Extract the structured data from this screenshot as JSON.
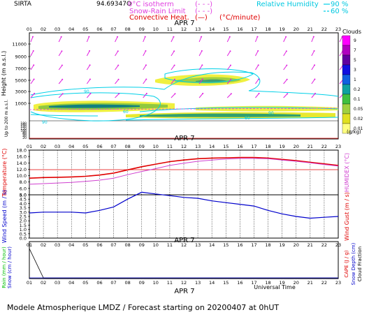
{
  "header": {
    "site": "SIRTA",
    "coords": "94.69347O",
    "isotherm_label": "0°C isotherm",
    "snow_rain_label": "Snow-Rain Limit",
    "convective_label": "Convective Heat.",
    "convective_unit": "(°C/minute)",
    "rh_label": "Relative Humidity",
    "rh_90": "90 %",
    "rh_60": "60 %"
  },
  "hours": [
    "01",
    "02",
    "03",
    "04",
    "05",
    "06",
    "07",
    "08",
    "09",
    "10",
    "11",
    "12",
    "13",
    "14",
    "15",
    "16",
    "17",
    "18",
    "19",
    "20",
    "21",
    "22",
    "23"
  ],
  "date_label": "APR   7",
  "footer": {
    "universal_time": "Universal Time",
    "model_line": "Modele Atmospherique LMDZ / Forecast starting on 20200407 at 0hUT"
  },
  "colors": {
    "temperature": "#e00000",
    "humidex": "#d040d0",
    "wind_speed": "#0000cc",
    "rh": "#00d0e8",
    "wind_arrows": "#e020e0",
    "rain_axis": "#00c000",
    "snow_axis": "#0000cc",
    "cape_axis": "#e00000"
  },
  "chart_data": [
    {
      "type": "heatmap",
      "title": "Clouds",
      "ylabel": "Height (m a.s.l.)",
      "ylabel2": "Up to 200 m a.s.l.",
      "yticks_upper": [
        11000,
        9000,
        7000,
        5000,
        3000,
        1000
      ],
      "yticks_lower": [
        180,
        160,
        140,
        120,
        100,
        80,
        60,
        40,
        20
      ],
      "colorbar": {
        "unit": "(g/kg)",
        "labels": [
          "9",
          "7",
          "5",
          "3",
          "1",
          "0.2",
          "0.1",
          "0.05",
          "0.02",
          "0.01"
        ],
        "colors": [
          "#ff00ff",
          "#b000c0",
          "#6000a0",
          "#1010e0",
          "#1060e0",
          "#10a0a0",
          "#40c040",
          "#a0d040",
          "#e0e020",
          "#ffff80"
        ]
      },
      "rh_contour_labels": [
        "90",
        "60",
        "90",
        "60",
        "90"
      ]
    },
    {
      "type": "line",
      "ylabel": "Temperature (°C)",
      "ylabel2": "HUMIDEX (°C)",
      "yticks": [
        18.0,
        16.0,
        14.0,
        12.0,
        10.0,
        8.0,
        6.0,
        4.0
      ],
      "ylim": [
        4,
        18
      ],
      "series": [
        {
          "name": "Temperature",
          "values": [
            9.2,
            9.4,
            9.5,
            9.6,
            9.8,
            10.2,
            10.8,
            11.8,
            12.8,
            13.6,
            14.4,
            14.9,
            15.3,
            15.5,
            15.6,
            15.7,
            15.7,
            15.5,
            15.1,
            14.7,
            14.2,
            13.7,
            13.2
          ]
        },
        {
          "name": "HUMIDEX",
          "values": [
            7.3,
            7.5,
            7.7,
            7.9,
            8.2,
            8.6,
            9.2,
            10.3,
            11.3,
            12.2,
            13.2,
            13.9,
            14.5,
            14.9,
            15.2,
            15.4,
            15.4,
            15.3,
            14.9,
            14.5,
            14.0,
            13.5,
            13.0
          ]
        }
      ]
    },
    {
      "type": "line",
      "ylabel": "Wind Speed (m / s)",
      "ylabel2": "Wind Gust (m / s)",
      "yticks": [
        5.0,
        4.5,
        4.0,
        3.5,
        3.0,
        2.5,
        2.0,
        1.5,
        1.0,
        0.5,
        0.0
      ],
      "ylim": [
        0,
        5
      ],
      "series": [
        {
          "name": "Wind Speed",
          "values": [
            2.9,
            3.0,
            3.0,
            3.0,
            2.9,
            3.2,
            3.6,
            4.5,
            5.3,
            5.1,
            4.9,
            4.7,
            4.6,
            4.3,
            4.1,
            3.9,
            3.7,
            3.2,
            2.8,
            2.5,
            2.3,
            2.4,
            2.5
          ]
        }
      ]
    },
    {
      "type": "line",
      "ylabel": "Rain (mm / hour)",
      "ylabel_b": "Snow (cm / hour)",
      "ylabel2": "CAPE (J / g)",
      "ylabel3": "Snow Depth (cm)",
      "ylabel4": "Cloud Fraction",
      "series": [
        {
          "name": "Cloud Fraction",
          "values": [
            1.0,
            0.0,
            0.0,
            0.0,
            0.0,
            0.0,
            0.0,
            0.0,
            0.0,
            0.0,
            0.0,
            0.0,
            0.0,
            0.0,
            0.0,
            0.0,
            0.0,
            0.0,
            0.0,
            0.0,
            0.0,
            0.0,
            0.0
          ]
        }
      ]
    }
  ]
}
